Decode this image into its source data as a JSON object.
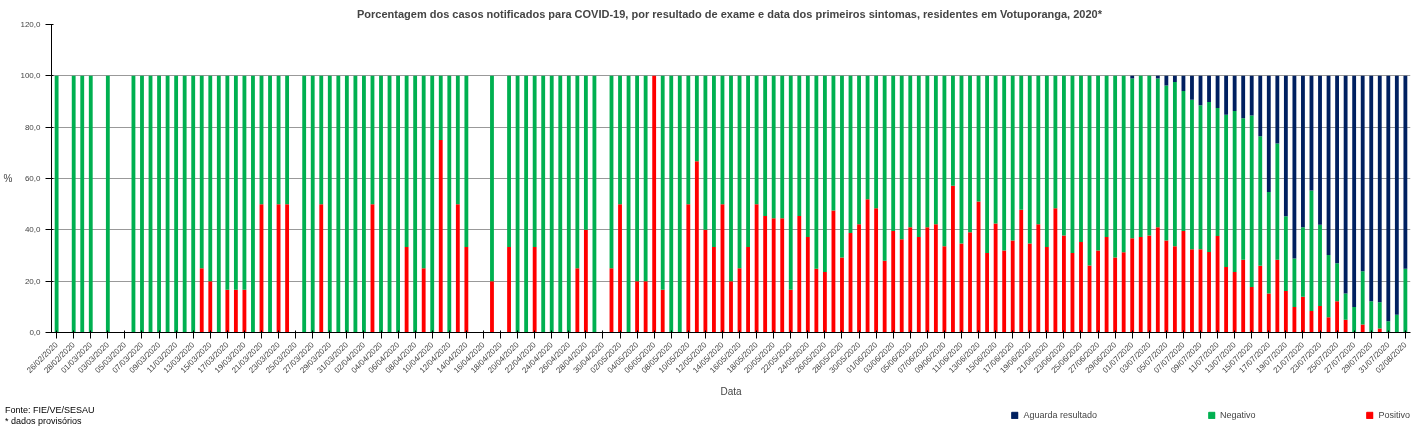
{
  "chart_data": {
    "type": "bar",
    "stacked": true,
    "title": "Porcentagem  dos casos notificados para COVID-19, por resultado de exame e data dos primeiros sintomas, residentes em Votuporanga, 2020*",
    "xlabel": "Data",
    "ylabel": "%",
    "annotations": [
      "Fonte: FIE/VE/SESAU",
      "* dados provisórios"
    ],
    "ylim": [
      0,
      120
    ],
    "yticks": [
      {
        "value": 0,
        "label": "0,0"
      },
      {
        "value": 20,
        "label": "20,0"
      },
      {
        "value": 40,
        "label": "40,0"
      },
      {
        "value": 60,
        "label": "60,0"
      },
      {
        "value": 80,
        "label": "80,0"
      },
      {
        "value": 100,
        "label": "100,0"
      },
      {
        "value": 120,
        "label": "120,0"
      }
    ],
    "grid": "y",
    "legend": "bottom right",
    "categories": [
      "26/02/2020",
      null,
      "28/02/2020",
      null,
      "01/03/2020",
      null,
      "03/03/2020",
      null,
      "05/03/2020",
      null,
      "07/03/2020",
      null,
      "09/03/2020",
      null,
      "11/03/2020",
      null,
      "13/03/2020",
      null,
      "15/03/2020",
      null,
      "17/03/2020",
      null,
      "19/03/2020",
      null,
      "21/03/2020",
      null,
      "23/03/2020",
      null,
      "25/03/2020",
      null,
      "27/03/2020",
      null,
      "29/03/2020",
      null,
      "31/03/2020",
      null,
      "02/04/2020",
      null,
      "04/04/2020",
      null,
      "06/04/2020",
      null,
      "08/04/2020",
      null,
      "10/04/2020",
      null,
      "12/04/2020",
      null,
      "14/04/2020",
      null,
      "16/04/2020",
      null,
      "18/04/2020",
      null,
      "20/04/2020",
      null,
      "22/04/2020",
      null,
      "24/04/2020",
      null,
      "26/04/2020",
      null,
      "28/04/2020",
      null,
      "30/04/2020",
      null,
      "02/05/2020",
      null,
      "04/05/2020",
      null,
      "06/05/2020",
      null,
      "08/05/2020",
      null,
      "10/05/2020",
      null,
      "12/05/2020",
      null,
      "14/05/2020",
      null,
      "16/05/2020",
      null,
      "18/05/2020",
      null,
      "20/05/2020",
      null,
      "22/05/2020",
      null,
      "24/05/2020",
      null,
      "26/05/2020",
      null,
      "28/05/2020",
      null,
      "30/05/2020",
      null,
      "01/06/2020",
      null,
      "03/06/2020",
      null,
      "05/06/2020",
      null,
      "07/06/2020",
      null,
      "09/06/2020",
      null,
      "11/06/2020",
      null,
      "13/06/2020",
      null,
      "15/06/2020",
      null,
      "17/06/2020",
      null,
      "19/06/2020",
      null,
      "21/06/2020",
      null,
      "23/06/2020",
      null,
      "25/06/2020",
      null,
      "27/06/2020",
      null,
      "29/06/2020",
      null,
      "01/07/2020",
      null,
      "03/07/2020",
      null,
      "05/07/2020",
      null,
      "07/07/2020",
      null,
      "09/07/2020",
      null,
      "11/07/2020",
      null,
      "13/07/2020",
      null,
      "15/07/2020",
      null,
      "17/07/2020",
      null,
      "19/07/2020",
      null,
      "21/07/2020",
      null,
      "23/07/2020",
      null,
      "25/07/2020",
      null,
      "27/07/2020",
      null,
      "29/07/2020",
      null,
      "31/07/2020",
      null,
      "02/08/2020"
    ],
    "series": [
      {
        "name": "Positivo",
        "color": "#ff0000",
        "values": [
          0,
          null,
          0,
          0,
          0,
          null,
          0,
          null,
          null,
          0,
          0,
          0,
          0,
          0,
          0,
          0,
          0,
          25,
          20,
          0,
          16.7,
          16.7,
          16.7,
          0,
          50,
          0,
          50,
          50,
          null,
          0,
          0,
          50,
          0,
          0,
          0,
          0,
          0,
          50,
          0,
          0,
          0,
          33.3,
          0,
          25,
          0,
          75,
          0,
          50,
          33.3,
          null,
          null,
          20,
          null,
          33.3,
          0,
          0,
          33.3,
          0,
          0,
          0,
          0,
          25,
          40,
          0,
          null,
          25,
          50,
          0,
          20,
          20,
          100,
          16.7,
          0,
          0,
          50,
          66.7,
          40,
          33.3,
          50,
          20,
          25,
          33.3,
          50,
          45.4,
          44.5,
          44.5,
          16.7,
          45.4,
          37.2,
          24.8,
          23.6,
          47.5,
          29.2,
          38.8,
          42.2,
          51.9,
          48.4,
          28.0,
          39.5,
          36.3,
          41.0,
          37.2,
          41.0,
          42.2,
          33.6,
          57.2,
          34.7,
          39.1,
          51.0,
          31.0,
          42.5,
          31.9,
          35.8,
          47.8,
          34.7,
          42.2,
          33.3,
          48.4,
          37.8,
          31.0,
          35.3,
          26.1,
          31.9,
          37.2,
          29.2,
          31.3,
          36.7,
          37.2,
          37.8,
          41.0,
          35.8,
          33.6,
          39.5,
          32.4,
          32.4,
          31.4,
          37.6,
          25.5,
          23.6,
          28.3,
          17.7,
          26.0,
          15.2,
          28.3,
          16.2,
          9.9,
          13.9,
          8.4,
          10.3,
          5.9,
          12.2,
          5.0,
          0,
          3.1,
          0,
          1.6,
          0,
          0,
          0
        ]
      },
      {
        "name": "Negativo",
        "color": "#00b050",
        "values": [
          100,
          null,
          100,
          100,
          100,
          null,
          100,
          null,
          null,
          100,
          100,
          100,
          100,
          100,
          100,
          100,
          100,
          75,
          80,
          100,
          83.3,
          83.3,
          83.3,
          100,
          50,
          100,
          50,
          50,
          null,
          100,
          100,
          50,
          100,
          100,
          100,
          100,
          100,
          50,
          100,
          100,
          100,
          66.7,
          100,
          75,
          100,
          25,
          100,
          50,
          66.7,
          null,
          null,
          80,
          null,
          66.7,
          100,
          100,
          66.7,
          100,
          100,
          100,
          100,
          75,
          60,
          100,
          null,
          75,
          50,
          100,
          80,
          80,
          0,
          83.3,
          100,
          100,
          50,
          33.3,
          60,
          66.7,
          50,
          80,
          75,
          66.7,
          50,
          54.6,
          55.5,
          55.5,
          83.3,
          54.6,
          62.8,
          75.2,
          76.4,
          52.5,
          70.8,
          61.2,
          57.8,
          48.1,
          51.6,
          72.0,
          60.5,
          63.7,
          59.0,
          62.8,
          59.0,
          57.8,
          66.4,
          42.8,
          65.3,
          60.9,
          49.0,
          69.0,
          57.5,
          68.1,
          64.2,
          52.2,
          65.3,
          57.8,
          66.7,
          51.6,
          62.2,
          69.0,
          64.7,
          73.9,
          68.1,
          62.8,
          70.8,
          68.7,
          62.3,
          62.8,
          62.2,
          58.0,
          60.4,
          64.0,
          54.6,
          58.3,
          56.1,
          58.4,
          49.9,
          59.3,
          62.7,
          55.2,
          66.8,
          50.5,
          39.5,
          45.3,
          29.1,
          18.9,
          27.1,
          46.9,
          31.7,
          24.3,
          14.8,
          10.2,
          9.9,
          20.8,
          12.2,
          10.2,
          4.4,
          6.9,
          24.8
        ]
      },
      {
        "name": "Aguarda resultado",
        "color": "#002060",
        "values": [
          0,
          null,
          0,
          0,
          0,
          null,
          0,
          null,
          null,
          0,
          0,
          0,
          0,
          0,
          0,
          0,
          0,
          0,
          0,
          0,
          0,
          0,
          0,
          0,
          0,
          0,
          0,
          0,
          null,
          0,
          0,
          0,
          0,
          0,
          0,
          0,
          0,
          0,
          0,
          0,
          0,
          0,
          0,
          0,
          0,
          0,
          0,
          0,
          0,
          null,
          null,
          0,
          null,
          0,
          0,
          0,
          0,
          0,
          0,
          0,
          0,
          0,
          0,
          0,
          null,
          0,
          0,
          0,
          0,
          0,
          0,
          0,
          0,
          0,
          0,
          0,
          0,
          0,
          0,
          0,
          0,
          0,
          0,
          0,
          0,
          0,
          0,
          0,
          0,
          0,
          0,
          0,
          0,
          0,
          0,
          0,
          0,
          0,
          0,
          0,
          0,
          0,
          0,
          0,
          0,
          0,
          0,
          0,
          0,
          0,
          0,
          0,
          0,
          0,
          0,
          0,
          0,
          0,
          0,
          0,
          0,
          0,
          0,
          0,
          0,
          0,
          1,
          0,
          0,
          1,
          3.8,
          2.4,
          5.9,
          9.3,
          11.5,
          10.2,
          12.5,
          15.2,
          13.7,
          16.5,
          15.5,
          23.5,
          45.3,
          26.4,
          54.7,
          71.2,
          59.0,
          44.7,
          58.0,
          69.8,
          73.0,
          84.8,
          90.1,
          76.1,
          87.8,
          88.2,
          95.6,
          93.1,
          75.2
        ]
      }
    ]
  }
}
